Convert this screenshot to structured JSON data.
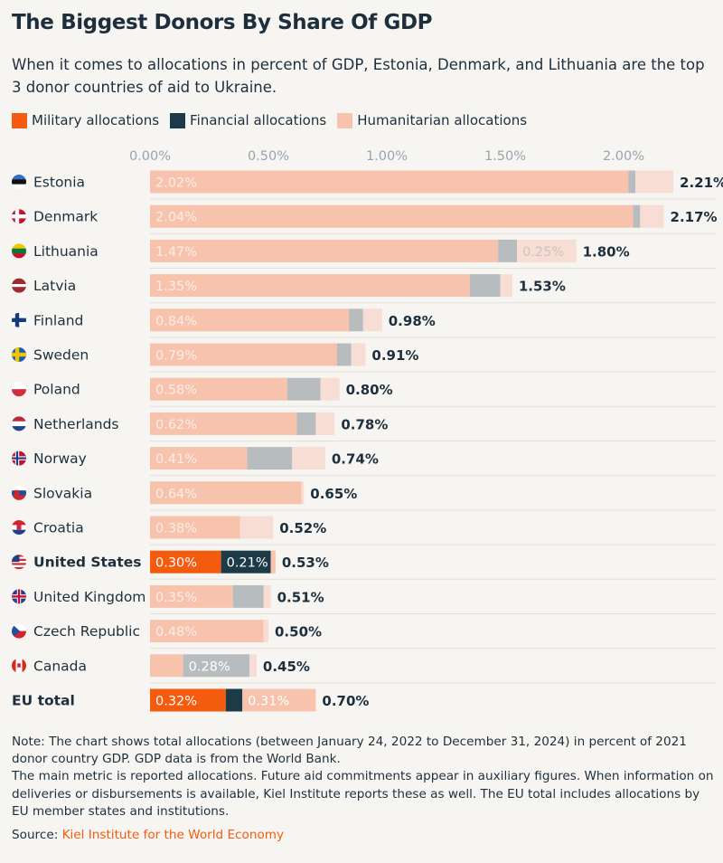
{
  "title": "The Biggest Donors By Share Of GDP",
  "subtitle": "When it comes to allocations in percent of GDP, Estonia, Denmark, and Lithuania are the top 3 donor countries of aid to Ukraine.",
  "colors": {
    "military": "#f45b0e",
    "financial": "#1d3a48",
    "humanitarian": "#f7c3ad",
    "financial_light": "#b7bcbe",
    "humanitarian_light": "#f7ddd3",
    "text": "#1d2f3c",
    "axis": "#98a4ad",
    "label_light": "#fbeee7",
    "background": "#f7f5f2"
  },
  "legend": [
    {
      "key": "military",
      "label": "Military allocations"
    },
    {
      "key": "financial",
      "label": "Financial allocations"
    },
    {
      "key": "humanitarian",
      "label": "Humanitarian allocations"
    }
  ],
  "chart_data": {
    "type": "bar",
    "orientation": "horizontal",
    "stacked": true,
    "unit": "% of GDP",
    "xlim": [
      0,
      2.25
    ],
    "ticks": [
      0,
      0.5,
      1.0,
      1.5,
      2.0
    ],
    "tick_labels": [
      "0.00%",
      "0.50%",
      "1.00%",
      "1.50%",
      "2.00%"
    ],
    "grid": false,
    "legend_position": "top-left",
    "series": [
      "Military allocations",
      "Financial allocations",
      "Humanitarian allocations"
    ],
    "rows": [
      {
        "country": "Estonia",
        "flag": "estonia-flag-icon",
        "military": 2.02,
        "financial": 0.03,
        "humanitarian": 0.16,
        "total": 2.21,
        "total_label": "2.21%",
        "labels": {
          "military": "2.02%"
        }
      },
      {
        "country": "Denmark",
        "flag": "denmark-flag-icon",
        "military": 2.04,
        "financial": 0.03,
        "humanitarian": 0.1,
        "total": 2.17,
        "total_label": "2.17%",
        "labels": {
          "military": "2.04%"
        }
      },
      {
        "country": "Lithuania",
        "flag": "lithuania-flag-icon",
        "military": 1.47,
        "financial": 0.08,
        "humanitarian": 0.25,
        "total": 1.8,
        "total_label": "1.80%",
        "labels": {
          "military": "1.47%",
          "humanitarian": "0.25%"
        }
      },
      {
        "country": "Latvia",
        "flag": "latvia-flag-icon",
        "military": 1.35,
        "financial": 0.13,
        "humanitarian": 0.05,
        "total": 1.53,
        "total_label": "1.53%",
        "labels": {
          "military": "1.35%"
        }
      },
      {
        "country": "Finland",
        "flag": "finland-flag-icon",
        "military": 0.84,
        "financial": 0.06,
        "humanitarian": 0.08,
        "total": 0.98,
        "total_label": "0.98%",
        "labels": {
          "military": "0.84%"
        }
      },
      {
        "country": "Sweden",
        "flag": "sweden-flag-icon",
        "military": 0.79,
        "financial": 0.06,
        "humanitarian": 0.06,
        "total": 0.91,
        "total_label": "0.91%",
        "labels": {
          "military": "0.79%"
        }
      },
      {
        "country": "Poland",
        "flag": "poland-flag-icon",
        "military": 0.58,
        "financial": 0.14,
        "humanitarian": 0.08,
        "total": 0.8,
        "total_label": "0.80%",
        "labels": {
          "military": "0.58%"
        }
      },
      {
        "country": "Netherlands",
        "flag": "netherlands-flag-icon",
        "military": 0.62,
        "financial": 0.08,
        "humanitarian": 0.08,
        "total": 0.78,
        "total_label": "0.78%",
        "labels": {
          "military": "0.62%"
        }
      },
      {
        "country": "Norway",
        "flag": "norway-flag-icon",
        "military": 0.41,
        "financial": 0.19,
        "humanitarian": 0.14,
        "total": 0.74,
        "total_label": "0.74%",
        "labels": {
          "military": "0.41%"
        }
      },
      {
        "country": "Slovakia",
        "flag": "slovakia-flag-icon",
        "military": 0.64,
        "financial": 0.0,
        "humanitarian": 0.01,
        "total": 0.65,
        "total_label": "0.65%",
        "labels": {
          "military": "0.64%"
        }
      },
      {
        "country": "Croatia",
        "flag": "croatia-flag-icon",
        "military": 0.38,
        "financial": 0.0,
        "humanitarian": 0.14,
        "total": 0.52,
        "total_label": "0.52%",
        "labels": {
          "military": "0.38%"
        }
      },
      {
        "country": "United States",
        "flag": "united-states-flag-icon",
        "highlight": true,
        "military": 0.3,
        "financial": 0.21,
        "humanitarian": 0.02,
        "total": 0.53,
        "total_label": "0.53%",
        "labels": {
          "military": "0.30%",
          "financial": "0.21%"
        }
      },
      {
        "country": "United Kingdom",
        "flag": "united-kingdom-flag-icon",
        "military": 0.35,
        "financial": 0.13,
        "humanitarian": 0.03,
        "total": 0.51,
        "total_label": "0.51%",
        "labels": {
          "military": "0.35%"
        }
      },
      {
        "country": "Czech Republic",
        "flag": "czech-republic-flag-icon",
        "military": 0.48,
        "financial": 0.0,
        "humanitarian": 0.02,
        "total": 0.5,
        "total_label": "0.50%",
        "labels": {
          "military": "0.48%"
        }
      },
      {
        "country": "Canada",
        "flag": "canada-flag-icon",
        "military": 0.14,
        "financial": 0.28,
        "humanitarian": 0.03,
        "total": 0.45,
        "total_label": "0.45%",
        "labels": {
          "financial": "0.28%"
        }
      },
      {
        "country": "EU total",
        "flag": "",
        "highlight": true,
        "military": 0.32,
        "financial": 0.07,
        "humanitarian": 0.31,
        "total": 0.7,
        "total_label": "0.70%",
        "labels": {
          "military": "0.32%",
          "humanitarian": "0.31%"
        }
      }
    ]
  },
  "notes": {
    "line1": "Note: The chart shows total allocations (between January 24, 2022 to December 31, 2024) in percent of 2021 donor country GDP. GDP data is from the World Bank.",
    "line2": "The main metric is reported allocations. Future aid commitments appear in auxiliary figures. When information on deliveries or disbursements is available, Kiel Institute reports these as well. The EU total includes allocations by EU member states and institutions.",
    "source_label": "Source:",
    "source_link": "Kiel Institute for the World Economy"
  }
}
